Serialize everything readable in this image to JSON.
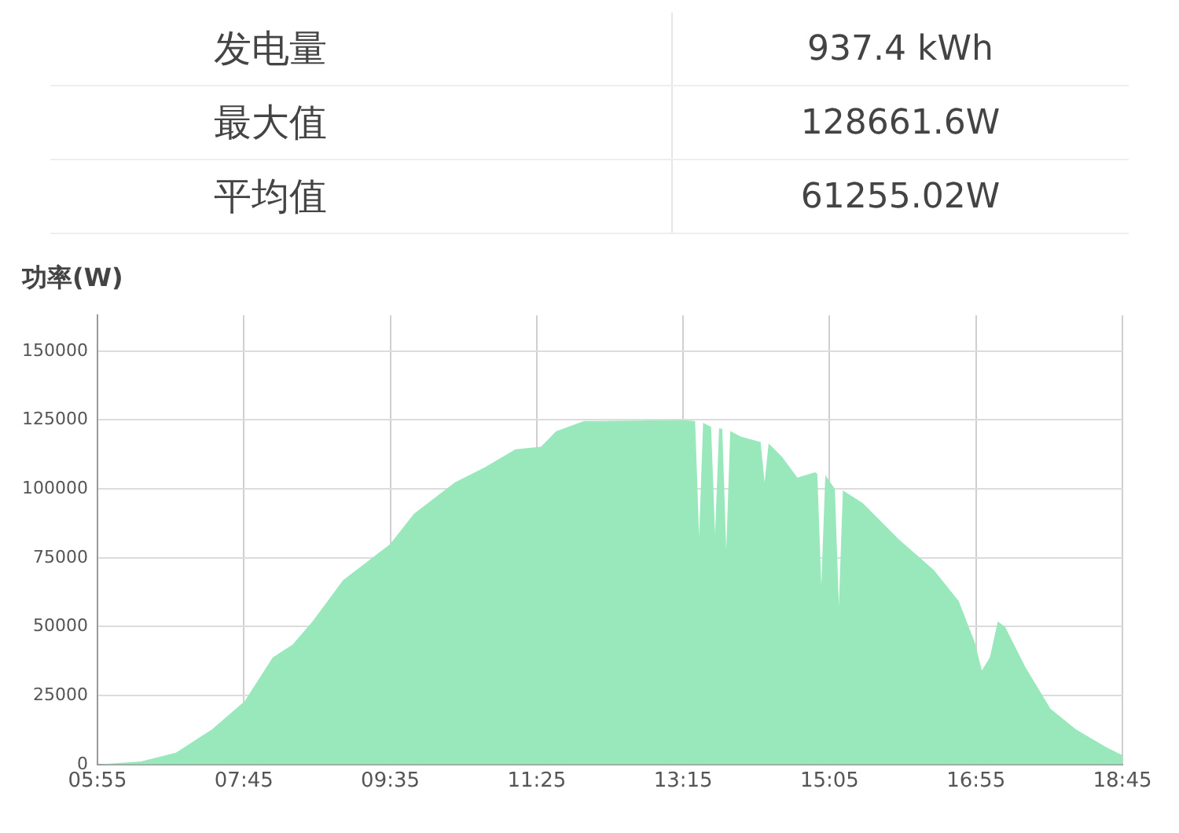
{
  "chart_data": {
    "type": "area",
    "ylabel": "功率(W)",
    "annotations": [
      "发电量",
      "937.4 kWh",
      "最大值",
      "128661.6W",
      "平均值",
      "61255.02W"
    ],
    "x": [
      5.92,
      6.46,
      6.9,
      7.35,
      7.76,
      8.11,
      8.36,
      8.61,
      8.99,
      9.58,
      9.88,
      10.39,
      10.77,
      11.15,
      11.47,
      11.66,
      12.01,
      13.25,
      13.4,
      13.45,
      13.5,
      13.6,
      13.65,
      13.7,
      13.74,
      13.79,
      13.84,
      13.97,
      14.22,
      14.27,
      14.32,
      14.49,
      14.68,
      14.9,
      14.93,
      14.98,
      15.03,
      15.15,
      15.2,
      15.25,
      15.5,
      15.95,
      16.39,
      16.7,
      16.9,
      16.99,
      17.09,
      17.19,
      17.28,
      17.54,
      17.85,
      18.17,
      18.55,
      18.75
    ],
    "series": [
      {
        "color": "#98e8bc",
        "values": [
          0,
          1100,
          4300,
          12700,
          23000,
          38800,
          43500,
          51900,
          66800,
          79900,
          91000,
          102300,
          107900,
          114400,
          115300,
          120900,
          124600,
          125000,
          124600,
          82700,
          124000,
          122500,
          83600,
          122000,
          121800,
          78000,
          121000,
          119000,
          117000,
          102300,
          116500,
          111600,
          104100,
          106000,
          105500,
          64900,
          105000,
          100000,
          57500,
          99500,
          94800,
          81700,
          70500,
          59300,
          44400,
          34100,
          38800,
          51900,
          50000,
          35100,
          20200,
          12700,
          6200,
          3400
        ]
      }
    ],
    "xlim": [
      5.9167,
      18.75
    ],
    "xticks": [
      {
        "value": 5.9167,
        "label": "05:55"
      },
      {
        "value": 7.75,
        "label": "07:45"
      },
      {
        "value": 9.5833,
        "label": "09:35"
      },
      {
        "value": 11.4167,
        "label": "11:25"
      },
      {
        "value": 13.25,
        "label": "13:15"
      },
      {
        "value": 15.0833,
        "label": "15:05"
      },
      {
        "value": 16.9167,
        "label": "16:55"
      },
      {
        "value": 18.75,
        "label": "18:45"
      }
    ],
    "ylim": [
      0,
      163000
    ],
    "yticks": [
      0,
      25000,
      50000,
      75000,
      100000,
      125000,
      150000
    ],
    "grid": true,
    "legend": false
  }
}
